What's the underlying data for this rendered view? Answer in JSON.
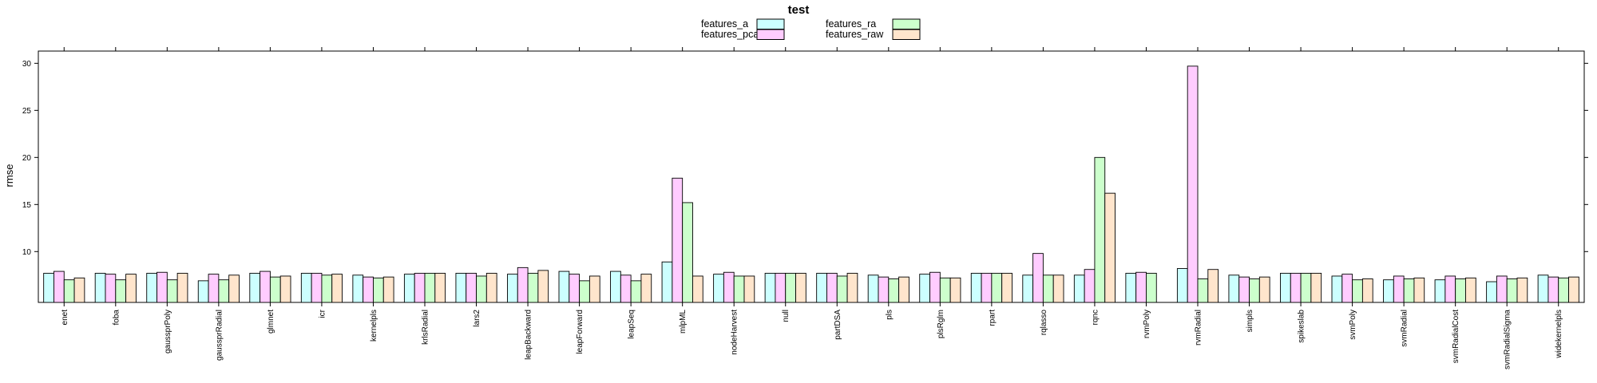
{
  "chart_data": {
    "type": "bar",
    "legend": {
      "title": "test",
      "placement": "top"
    },
    "ylabel": "rmse",
    "xlabel": "",
    "ylim": [
      4.6,
      31.3
    ],
    "yticks": [
      10,
      15,
      20,
      25,
      30
    ],
    "grid": false,
    "categories": [
      "enet",
      "foba",
      "gaussprPoly",
      "gaussprRadial",
      "glmnet",
      "icr",
      "kernelpls",
      "krlsRadial",
      "lars2",
      "leapBackward",
      "leapForward",
      "leapSeq",
      "mlpML",
      "nodeHarvest",
      "null",
      "partDSA",
      "pls",
      "plsRglm",
      "rpart",
      "rqlasso",
      "rqnc",
      "rvmPoly",
      "rvmRadial",
      "simpls",
      "spikeslab",
      "svmPoly",
      "svmRadial",
      "svmRadialCost",
      "svmRadialSigma",
      "widekernelpls"
    ],
    "series": [
      {
        "name": "features_a",
        "color": "#ccffff",
        "values": [
          7.7,
          7.7,
          7.7,
          6.9,
          7.7,
          7.7,
          7.5,
          7.6,
          7.7,
          7.6,
          7.9,
          7.9,
          8.9,
          7.6,
          7.7,
          7.7,
          7.5,
          7.6,
          7.7,
          7.5,
          7.5,
          7.7,
          8.2,
          7.5,
          7.7,
          7.4,
          7.0,
          7.0,
          6.8,
          7.5
        ]
      },
      {
        "name": "features_pca",
        "color": "#ffccff",
        "values": [
          7.9,
          7.6,
          7.8,
          7.6,
          7.9,
          7.7,
          7.3,
          7.7,
          7.7,
          8.3,
          7.6,
          7.5,
          17.8,
          7.8,
          7.7,
          7.7,
          7.3,
          7.8,
          7.7,
          9.8,
          8.1,
          7.8,
          29.7,
          7.3,
          7.7,
          7.6,
          7.4,
          7.4,
          7.4,
          7.3
        ]
      },
      {
        "name": "features_ra",
        "color": "#ccffcc",
        "values": [
          7.0,
          7.0,
          7.0,
          7.0,
          7.3,
          7.5,
          7.2,
          7.7,
          7.4,
          7.7,
          6.9,
          6.9,
          15.2,
          7.4,
          7.7,
          7.4,
          7.1,
          7.2,
          7.7,
          7.5,
          20.0,
          7.7,
          7.1,
          7.1,
          7.7,
          7.0,
          7.1,
          7.1,
          7.1,
          7.2
        ]
      },
      {
        "name": "features_raw",
        "color": "#ffe5cc",
        "values": [
          7.2,
          7.6,
          7.7,
          7.5,
          7.4,
          7.6,
          7.3,
          7.7,
          7.7,
          8.0,
          7.4,
          7.6,
          7.4,
          7.4,
          7.7,
          7.7,
          7.3,
          7.2,
          7.7,
          7.5,
          16.2,
          null,
          8.1,
          7.3,
          7.7,
          7.1,
          7.2,
          7.2,
          7.2,
          7.3
        ]
      }
    ]
  }
}
